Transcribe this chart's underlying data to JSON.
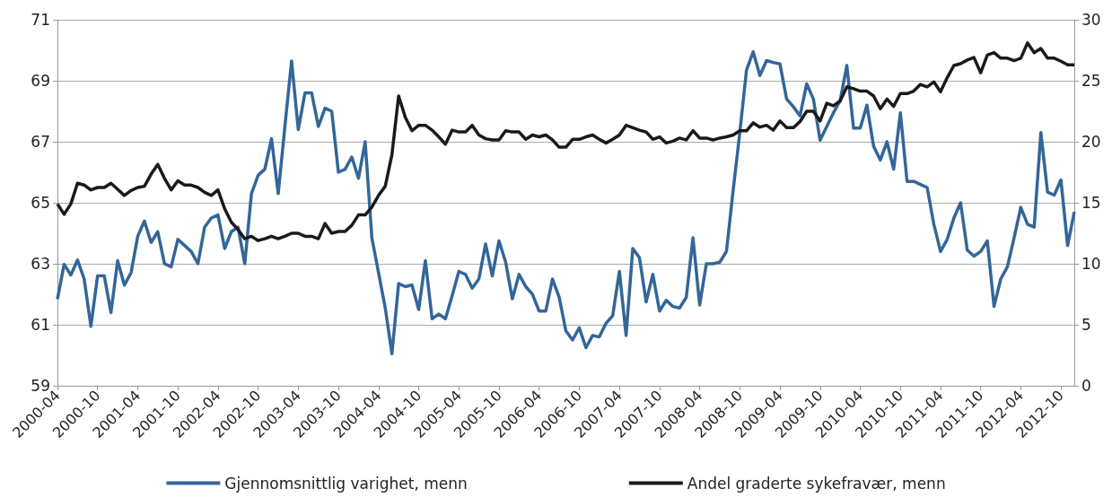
{
  "chart_data": {
    "type": "line",
    "categories": [
      "2000-04",
      null,
      null,
      null,
      null,
      null,
      "2000-10",
      null,
      null,
      null,
      null,
      null,
      "2001-04",
      null,
      null,
      null,
      null,
      null,
      "2001-10",
      null,
      null,
      null,
      null,
      null,
      "2002-04",
      null,
      null,
      null,
      null,
      null,
      "2002-10",
      null,
      null,
      null,
      null,
      null,
      "2003-04",
      null,
      null,
      null,
      null,
      null,
      "2003-10",
      null,
      null,
      null,
      null,
      null,
      "2004-04",
      null,
      null,
      null,
      null,
      null,
      "2004-10",
      null,
      null,
      null,
      null,
      null,
      "2005-04",
      null,
      null,
      null,
      null,
      null,
      "2005-10",
      null,
      null,
      null,
      null,
      null,
      "2006-04",
      null,
      null,
      null,
      null,
      null,
      "2006-10",
      null,
      null,
      null,
      null,
      null,
      "2007-04",
      null,
      null,
      null,
      null,
      null,
      "2007-10",
      null,
      null,
      null,
      null,
      null,
      "2008-04",
      null,
      null,
      null,
      null,
      null,
      "2008-10",
      null,
      null,
      null,
      null,
      null,
      "2009-04",
      null,
      null,
      null,
      null,
      null,
      "2009-10",
      null,
      null,
      null,
      null,
      null,
      "2010-04",
      null,
      null,
      null,
      null,
      null,
      "2010-10",
      null,
      null,
      null,
      null,
      null,
      "2011-04",
      null,
      null,
      null,
      null,
      null,
      "2011-10",
      null,
      null,
      null,
      null,
      null,
      "2012-04",
      null,
      null,
      null,
      null,
      null,
      "2012-10",
      null,
      null
    ],
    "series": [
      {
        "name": "Gjennomsnittlig varighet, menn",
        "color": "#336699",
        "values": [
          61.84,
          62.98,
          62.63,
          63.12,
          62.5,
          60.95,
          62.6,
          62.6,
          61.4,
          63.1,
          62.3,
          62.7,
          63.9,
          64.4,
          63.7,
          64.05,
          63.0,
          62.9,
          63.8,
          63.6,
          63.4,
          63.0,
          64.2,
          64.5,
          64.6,
          63.5,
          64.05,
          64.2,
          63.0,
          65.3,
          65.9,
          66.1,
          67.1,
          65.3,
          67.5,
          69.65,
          67.4,
          68.6,
          68.6,
          67.5,
          68.1,
          68.0,
          66.0,
          66.1,
          66.5,
          65.8,
          67.0,
          63.85,
          62.7,
          61.55,
          60.05,
          62.35,
          62.25,
          62.3,
          61.5,
          63.1,
          61.2,
          61.35,
          61.2,
          61.95,
          62.75,
          62.65,
          62.2,
          62.5,
          63.65,
          62.6,
          63.75,
          63.05,
          61.85,
          62.65,
          62.25,
          62.0,
          61.45,
          61.45,
          62.5,
          61.9,
          60.8,
          60.5,
          60.9,
          60.25,
          60.65,
          60.6,
          61.05,
          61.3,
          62.75,
          60.65,
          63.5,
          63.2,
          61.75,
          62.65,
          61.45,
          61.8,
          61.6,
          61.55,
          61.9,
          63.85,
          61.65,
          63.0,
          63.0,
          63.05,
          63.4,
          65.4,
          67.3,
          69.35,
          69.95,
          69.17,
          69.66,
          69.6,
          69.55,
          68.4,
          68.15,
          67.85,
          68.9,
          68.4,
          67.05,
          67.5,
          67.95,
          68.35,
          69.5,
          67.45,
          67.45,
          68.2,
          66.85,
          66.4,
          67.0,
          66.1,
          67.95,
          65.7,
          65.7,
          65.6,
          65.5,
          64.3,
          63.4,
          63.8,
          64.5,
          65.0,
          63.45,
          63.25,
          63.4,
          63.75,
          61.6,
          62.5,
          62.9,
          63.85,
          64.85,
          64.3,
          64.2,
          67.3,
          65.35,
          65.25,
          65.75,
          63.6,
          64.7
        ]
      },
      {
        "name": "Andel graderte sykefravær, menn",
        "color": "#1a1a1a",
        "axis": "y2",
        "values": [
          14.9,
          14.05,
          14.9,
          16.6,
          16.45,
          16.05,
          16.25,
          16.25,
          16.6,
          16.1,
          15.6,
          16.0,
          16.25,
          16.35,
          17.35,
          18.15,
          17.0,
          16.05,
          16.8,
          16.45,
          16.45,
          16.25,
          15.85,
          15.6,
          16.05,
          14.5,
          13.4,
          12.8,
          12.05,
          12.25,
          11.9,
          12.05,
          12.25,
          12.05,
          12.25,
          12.5,
          12.5,
          12.25,
          12.25,
          12.05,
          13.3,
          12.5,
          12.65,
          12.65,
          13.15,
          14.0,
          14.0,
          14.65,
          15.6,
          16.35,
          18.95,
          23.75,
          22.0,
          20.9,
          21.35,
          21.35,
          20.95,
          20.4,
          19.8,
          20.95,
          20.8,
          20.8,
          21.35,
          20.55,
          20.25,
          20.15,
          20.15,
          20.9,
          20.8,
          20.8,
          20.2,
          20.55,
          20.4,
          20.55,
          20.15,
          19.55,
          19.55,
          20.2,
          20.2,
          20.4,
          20.55,
          20.2,
          19.9,
          20.2,
          20.55,
          21.35,
          21.15,
          20.95,
          20.8,
          20.2,
          20.4,
          19.9,
          20.05,
          20.3,
          20.15,
          20.9,
          20.3,
          20.3,
          20.15,
          20.3,
          20.4,
          20.55,
          20.9,
          20.9,
          21.55,
          21.2,
          21.35,
          20.95,
          21.7,
          21.15,
          21.15,
          21.65,
          22.5,
          22.5,
          21.7,
          23.15,
          22.95,
          23.35,
          24.5,
          24.35,
          24.15,
          24.15,
          23.75,
          22.7,
          23.5,
          22.9,
          23.95,
          23.95,
          24.15,
          24.7,
          24.5,
          24.9,
          24.1,
          25.25,
          26.25,
          26.4,
          26.7,
          26.9,
          25.65,
          27.1,
          27.3,
          26.85,
          26.85,
          26.65,
          26.85,
          28.1,
          27.3,
          27.65,
          26.85,
          26.85,
          26.6,
          26.3,
          26.3
        ]
      }
    ],
    "ylim": [
      59,
      71
    ],
    "yticks": [
      59,
      61,
      63,
      65,
      67,
      69,
      71
    ],
    "y2lim": [
      0,
      30
    ],
    "y2ticks": [
      0,
      5,
      10,
      15,
      20,
      25,
      30
    ],
    "grid": "y",
    "legend": "bottom",
    "marker": "none",
    "line_style": "solid"
  }
}
